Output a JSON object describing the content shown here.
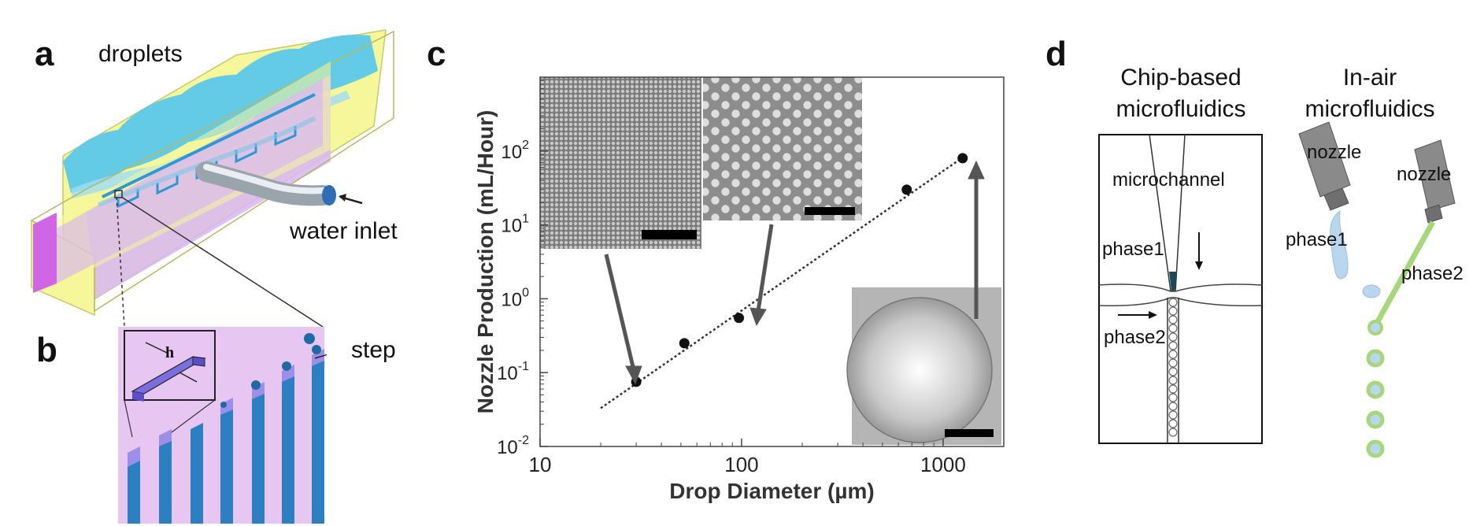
{
  "panels": {
    "a": {
      "letter": "a",
      "label_droplets": "droplets",
      "label_water_inlet": "water inlet"
    },
    "b": {
      "letter": "b",
      "label_step": "step",
      "label_h": "h"
    },
    "c": {
      "letter": "c"
    },
    "d": {
      "letter": "d",
      "chip_title": [
        "Chip-based",
        "microfluidics"
      ],
      "air_title": [
        "In-air",
        "microfluidics"
      ],
      "label_microchannel": "microchannel",
      "label_phase1_chip": "phase1",
      "label_phase2_chip": "phase2",
      "label_nozzle_left": "nozzle",
      "label_nozzle_right": "nozzle",
      "label_phase1_air": "phase1",
      "label_phase2_air": "phase2"
    }
  },
  "chart_data": {
    "type": "scatter",
    "xlabel": "Drop Diameter (µm)",
    "ylabel": "Nozzle Production (mL/Hour)",
    "x_scale": "log",
    "y_scale": "log",
    "xlim": [
      10,
      2000
    ],
    "ylim": [
      0.01,
      1000
    ],
    "x_ticks": [
      {
        "value": 10,
        "label": "10"
      },
      {
        "value": 100,
        "label": "100"
      },
      {
        "value": 1000,
        "label": "1000"
      }
    ],
    "y_ticks": [
      {
        "value": 0.01,
        "base": "10",
        "exp": "-2"
      },
      {
        "value": 0.1,
        "base": "10",
        "exp": "-1"
      },
      {
        "value": 1,
        "base": "10",
        "exp": "0"
      },
      {
        "value": 10,
        "base": "10",
        "exp": "1"
      },
      {
        "value": 100,
        "base": "10",
        "exp": "2"
      }
    ],
    "points": [
      {
        "x": 30,
        "y": 0.075
      },
      {
        "x": 52,
        "y": 0.25
      },
      {
        "x": 97,
        "y": 0.55
      },
      {
        "x": 660,
        "y": 30
      },
      {
        "x": 1250,
        "y": 80
      }
    ],
    "fit_line": {
      "x": [
        20,
        1300
      ],
      "y": [
        0.033,
        88
      ]
    },
    "grid": false,
    "legend": "none"
  },
  "colors": {
    "chip_yellow": "#f6f79a",
    "chip_violet": "#d7b6f2",
    "droplet_blue": "#54c5f0",
    "channel_blue": "#2c98d8",
    "step_bg": "#e8c6f2",
    "nozzle_gray": "#888888",
    "phase1_fill": "#b9d6ef",
    "phase2_green": "#a8d67a"
  }
}
